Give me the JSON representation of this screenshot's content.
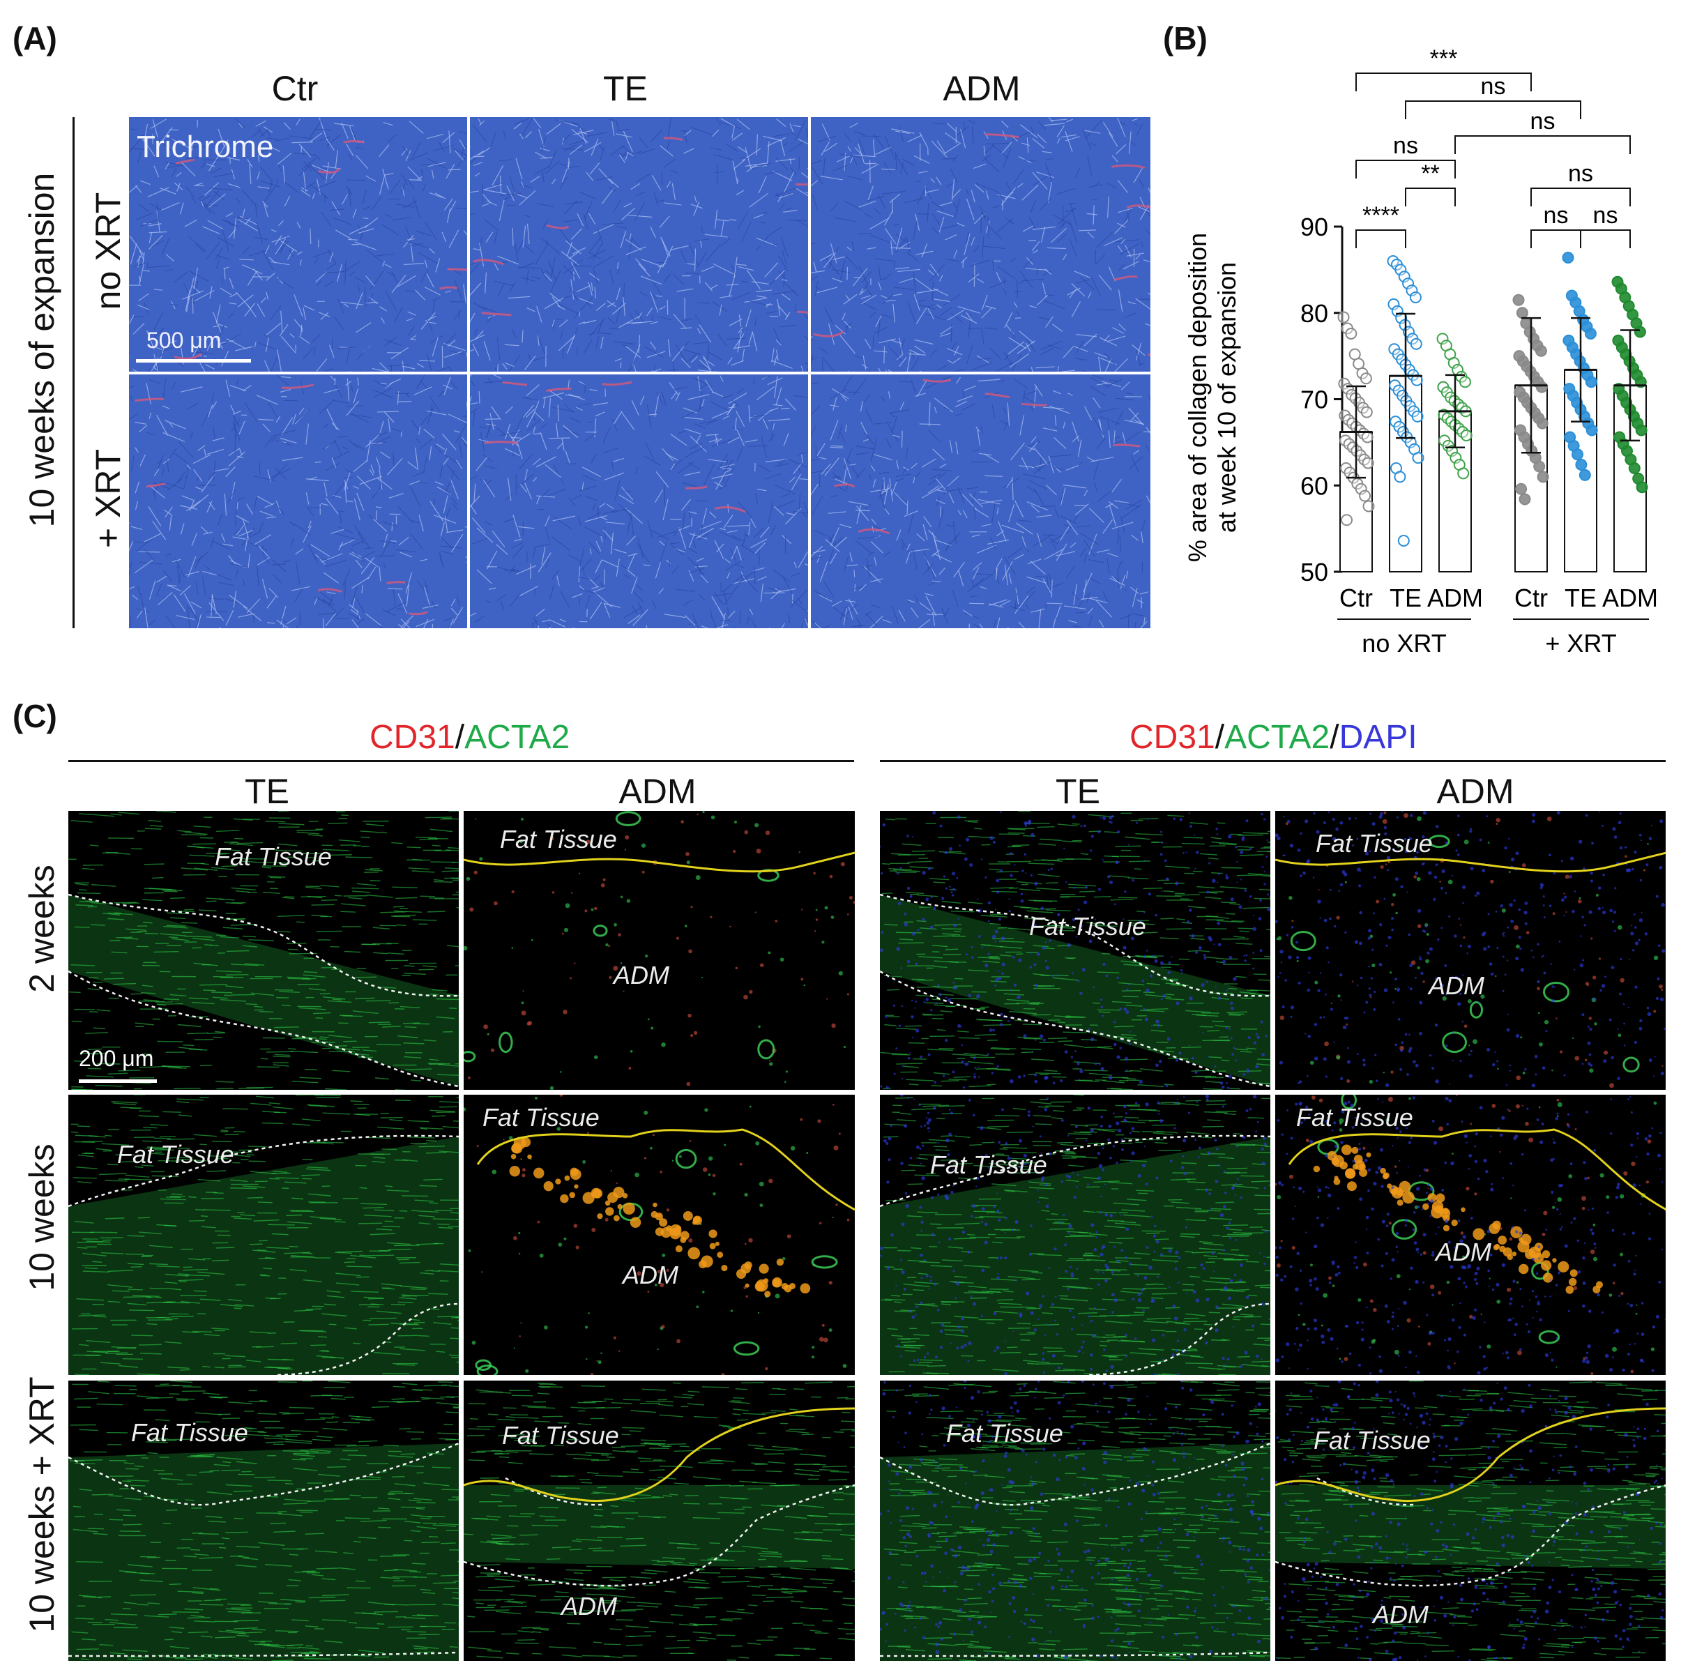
{
  "panel_labels": {
    "a": "(A)",
    "b": "(B)",
    "c": "(C)"
  },
  "panelA": {
    "columns": [
      "Ctr",
      "TE",
      "ADM"
    ],
    "group_label": "10 weeks of expansion",
    "rows": [
      "no XRT",
      "+ XRT"
    ],
    "stain_label": "Trichrome",
    "scale_bar": "500 μm"
  },
  "panelC": {
    "stain_left": {
      "cd31": "CD31",
      "sep": "/",
      "acta2": "ACTA2"
    },
    "stain_right": {
      "cd31": "CD31",
      "sep1": "/",
      "acta2": "ACTA2",
      "sep2": "/",
      "dapi": "DAPI"
    },
    "columns": [
      "TE",
      "ADM",
      "TE",
      "ADM"
    ],
    "rows": [
      "2 weeks",
      "10 weeks",
      "10 weeks + XRT"
    ],
    "fat_label": "Fat Tissue",
    "adm_label": "ADM",
    "scale_bar": "200 μm",
    "colors": {
      "cd31": "#e0262b",
      "acta2": "#1faa4a",
      "dapi": "#3838d8"
    }
  },
  "chart_data": {
    "type": "bar",
    "ylabel_line1": "% area of collagen deposition",
    "ylabel_line2": "at week 10 of expansion",
    "ylim": [
      50,
      90
    ],
    "yticks": [
      50,
      60,
      70,
      80,
      90
    ],
    "tick_labels": [
      "50",
      "60",
      "70",
      "80",
      "90"
    ],
    "categories": [
      "Ctr",
      "TE",
      "ADM",
      "Ctr",
      "TE",
      "ADM"
    ],
    "groups": [
      "no XRT",
      "+ XRT"
    ],
    "series": [
      {
        "values": [
          66.2,
          72.7,
          68.6,
          71.6,
          73.4,
          71.6
        ],
        "errors": [
          5.3,
          7.2,
          4.2,
          7.8,
          6.0,
          6.4
        ]
      }
    ],
    "colors": [
      "#8a8a8a",
      "#2a8fd8",
      "#3ea34a",
      "#8a8a8a",
      "#2a8fd8",
      "#1e8a2e"
    ],
    "filled": [
      false,
      false,
      false,
      true,
      true,
      true
    ],
    "points": [
      [
        79.5,
        78.2,
        77.6,
        75.2,
        74.1,
        73.0,
        72.4,
        71.8,
        71.2,
        70.5,
        70.1,
        69.6,
        69.0,
        68.5,
        68.1,
        67.6,
        67.2,
        66.8,
        66.4,
        66.0,
        65.6,
        65.2,
        64.8,
        64.4,
        64.0,
        63.5,
        63.0,
        62.6,
        62.0,
        61.5,
        60.9,
        60.2,
        59.6,
        58.8,
        57.6,
        56.0
      ],
      [
        86.0,
        85.6,
        85.0,
        84.2,
        83.4,
        82.6,
        81.8,
        81.0,
        80.2,
        79.4,
        78.6,
        77.8,
        77.0,
        76.4,
        75.8,
        75.2,
        74.6,
        74.0,
        73.4,
        72.8,
        72.2,
        71.6,
        71.0,
        70.4,
        69.8,
        69.2,
        68.6,
        68.0,
        67.4,
        66.8,
        66.2,
        65.6,
        65.0,
        64.2,
        63.2,
        62.0,
        61.0,
        53.6
      ],
      [
        77.0,
        76.2,
        75.2,
        74.2,
        73.4,
        72.6,
        72.0,
        71.4,
        70.8,
        70.2,
        69.8,
        69.4,
        69.0,
        68.6,
        68.2,
        67.8,
        67.4,
        67.0,
        66.6,
        66.2,
        65.8,
        65.2,
        64.6,
        64.0,
        63.2,
        62.4,
        61.4
      ],
      [
        81.5,
        80.0,
        78.8,
        77.8,
        77.0,
        76.2,
        75.6,
        75.0,
        74.4,
        73.8,
        73.2,
        72.6,
        72.0,
        71.4,
        70.8,
        70.2,
        69.6,
        69.0,
        68.4,
        67.8,
        67.2,
        66.4,
        65.6,
        64.8,
        64.0,
        63.2,
        62.2,
        61.0,
        59.6,
        58.4
      ],
      [
        86.4,
        82.0,
        81.2,
        80.2,
        79.2,
        78.4,
        77.6,
        76.8,
        76.0,
        75.2,
        74.4,
        73.6,
        72.8,
        72.0,
        71.2,
        70.4,
        69.6,
        68.8,
        68.0,
        67.2,
        66.4,
        65.6,
        64.6,
        63.6,
        62.4,
        61.2
      ],
      [
        83.6,
        82.8,
        81.8,
        80.8,
        79.8,
        78.8,
        77.8,
        76.8,
        76.0,
        75.2,
        74.4,
        73.6,
        72.8,
        72.0,
        71.2,
        70.4,
        69.6,
        68.8,
        68.0,
        67.2,
        66.4,
        65.6,
        64.8,
        64.0,
        63.0,
        62.0,
        60.8,
        59.8
      ]
    ],
    "significance": [
      {
        "from": 0,
        "to": 3,
        "label": "***"
      },
      {
        "from": 1,
        "to": 4,
        "label": "ns"
      },
      {
        "from": 2,
        "to": 5,
        "label": "ns"
      },
      {
        "from": 0,
        "to": 2,
        "label": "ns"
      },
      {
        "from": 1,
        "to": 2,
        "label": "**"
      },
      {
        "from": 0,
        "to": 1,
        "label": "****"
      },
      {
        "from": 3,
        "to": 5,
        "label": "ns"
      },
      {
        "from": 3,
        "to": 4,
        "label": "ns"
      },
      {
        "from": 4,
        "to": 5,
        "label": "ns"
      }
    ]
  }
}
